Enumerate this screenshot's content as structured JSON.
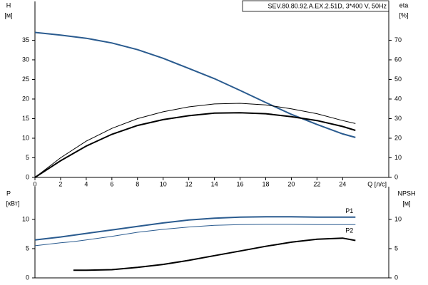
{
  "chart_data": [
    {
      "type": "line",
      "title": "SEV.80.80.92.A.EX.2.51D, 3*400 V, 50Hz",
      "y_label": "H",
      "y_unit": "[м]",
      "y2_label": "eta",
      "y2_unit": "[%]",
      "x_label": "Q [л/с]",
      "x": [
        0,
        2,
        4,
        6,
        8,
        10,
        12,
        14,
        16,
        18,
        20,
        22,
        24,
        25
      ],
      "xlim": [
        0,
        27.6
      ],
      "xticks": [
        0,
        2,
        4,
        6,
        8,
        10,
        12,
        14,
        16,
        18,
        20,
        22,
        24
      ],
      "ylim": [
        0,
        44.9
      ],
      "yticks": [
        0,
        5,
        10,
        15,
        20,
        25,
        30,
        35
      ],
      "y2lim": [
        0,
        89.8
      ],
      "y2ticks": [
        0,
        10,
        20,
        30,
        40,
        50,
        60,
        70
      ],
      "grid": false,
      "series": [
        {
          "color": "#2a5b8f",
          "line_width": 2,
          "axis": "y",
          "values": [
            37,
            36.3,
            35.5,
            34.3,
            32.6,
            30.4,
            27.8,
            25.2,
            22.2,
            19.1,
            16.1,
            13.5,
            11.1,
            10.2
          ]
        },
        {
          "color": "#000000",
          "line_width": 1,
          "axis": "y2",
          "values": [
            0,
            10,
            18.5,
            25,
            30,
            33.5,
            36,
            37.5,
            37.8,
            37,
            35,
            32.5,
            29,
            27.5
          ]
        },
        {
          "color": "#000000",
          "line_width": 2,
          "axis": "y2",
          "values": [
            0,
            8.5,
            16,
            22,
            26.5,
            29.5,
            31.5,
            32.8,
            33,
            32.5,
            31,
            29,
            26,
            24
          ]
        }
      ]
    },
    {
      "type": "line",
      "y_label": "P",
      "y_unit": "[кВт]",
      "y2_label": "NPSH",
      "y2_unit": "[м]",
      "x": [
        0,
        2,
        3,
        4,
        6,
        8,
        10,
        12,
        14,
        16,
        18,
        20,
        22,
        24,
        25
      ],
      "xlim": [
        0,
        27.6
      ],
      "ylim": [
        0,
        15.6
      ],
      "yticks": [
        0,
        5,
        10
      ],
      "y2lim": [
        0,
        15.6
      ],
      "y2ticks": [
        0,
        5,
        10
      ],
      "grid": false,
      "series": [
        {
          "name": "P1",
          "color": "#2a5b8f",
          "line_width": 2,
          "axis": "y",
          "values": [
            6.5,
            7.0,
            7.3,
            7.6,
            8.2,
            8.8,
            9.4,
            9.9,
            10.2,
            10.4,
            10.45,
            10.45,
            10.4,
            10.4,
            10.4
          ]
        },
        {
          "name": "P2",
          "color": "#2a5b8f",
          "line_width": 1,
          "axis": "y",
          "values": [
            5.5,
            6.0,
            6.2,
            6.5,
            7.1,
            7.8,
            8.3,
            8.7,
            9.0,
            9.1,
            9.15,
            9.15,
            9.1,
            9.1,
            9.1
          ]
        },
        {
          "color": "#000000",
          "line_width": 2,
          "axis": "y2",
          "values": [
            null,
            null,
            1.3,
            1.3,
            1.4,
            1.8,
            2.3,
            3.0,
            3.8,
            4.6,
            5.4,
            6.1,
            6.6,
            6.8,
            6.4
          ]
        }
      ]
    }
  ]
}
